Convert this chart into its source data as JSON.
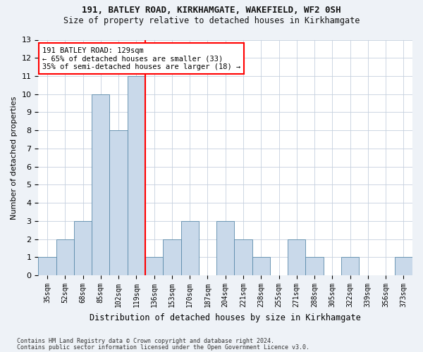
{
  "title1": "191, BATLEY ROAD, KIRKHAMGATE, WAKEFIELD, WF2 0SH",
  "title2": "Size of property relative to detached houses in Kirkhamgate",
  "xlabel": "Distribution of detached houses by size in Kirkhamgate",
  "ylabel": "Number of detached properties",
  "categories": [
    "35sqm",
    "52sqm",
    "68sqm",
    "85sqm",
    "102sqm",
    "119sqm",
    "136sqm",
    "153sqm",
    "170sqm",
    "187sqm",
    "204sqm",
    "221sqm",
    "238sqm",
    "255sqm",
    "271sqm",
    "288sqm",
    "305sqm",
    "322sqm",
    "339sqm",
    "356sqm",
    "373sqm"
  ],
  "values": [
    1,
    2,
    3,
    10,
    8,
    11,
    1,
    2,
    3,
    0,
    3,
    2,
    1,
    0,
    2,
    1,
    0,
    1,
    0,
    0,
    1
  ],
  "bar_color": "#c9d9ea",
  "bar_edge_color": "#5a8aaa",
  "vline_color": "red",
  "annotation_text": "191 BATLEY ROAD: 129sqm\n← 65% of detached houses are smaller (33)\n35% of semi-detached houses are larger (18) →",
  "annotation_box_color": "white",
  "annotation_box_edge_color": "red",
  "ylim": [
    0,
    13
  ],
  "yticks": [
    0,
    1,
    2,
    3,
    4,
    5,
    6,
    7,
    8,
    9,
    10,
    11,
    12,
    13
  ],
  "footer1": "Contains HM Land Registry data © Crown copyright and database right 2024.",
  "footer2": "Contains public sector information licensed under the Open Government Licence v3.0.",
  "bg_color": "#eef2f7",
  "plot_bg_color": "#ffffff",
  "grid_color": "#c5d0de"
}
